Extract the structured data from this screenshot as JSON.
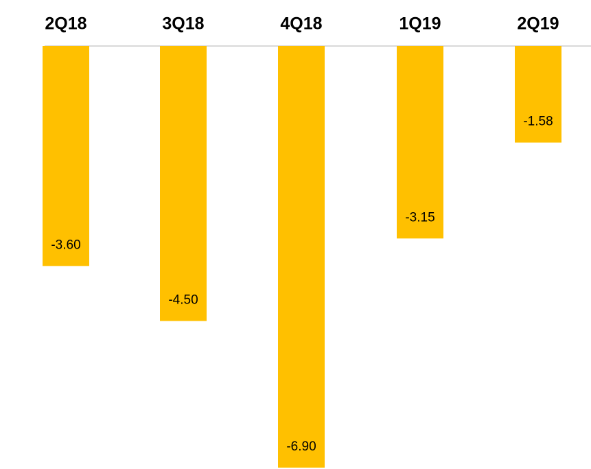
{
  "chart_data": {
    "type": "bar",
    "orientation": "vertical",
    "categories": [
      "2Q18",
      "3Q18",
      "4Q18",
      "1Q19",
      "2Q19"
    ],
    "values": [
      -3.6,
      -4.5,
      -6.9,
      -3.15,
      -1.58
    ],
    "value_labels": [
      "-3.60",
      "-4.50",
      "-6.90",
      "-3.15",
      "-1.58"
    ],
    "title": "",
    "xlabel": "",
    "ylabel": "",
    "ylim": [
      -6.9,
      0
    ],
    "category_axis_position": "top",
    "grid": false,
    "legend": "none",
    "colors": {
      "bar": "#FFC000",
      "axis_line": "#D9D9D9",
      "text": "#000000",
      "background": "#FFFFFF"
    }
  }
}
